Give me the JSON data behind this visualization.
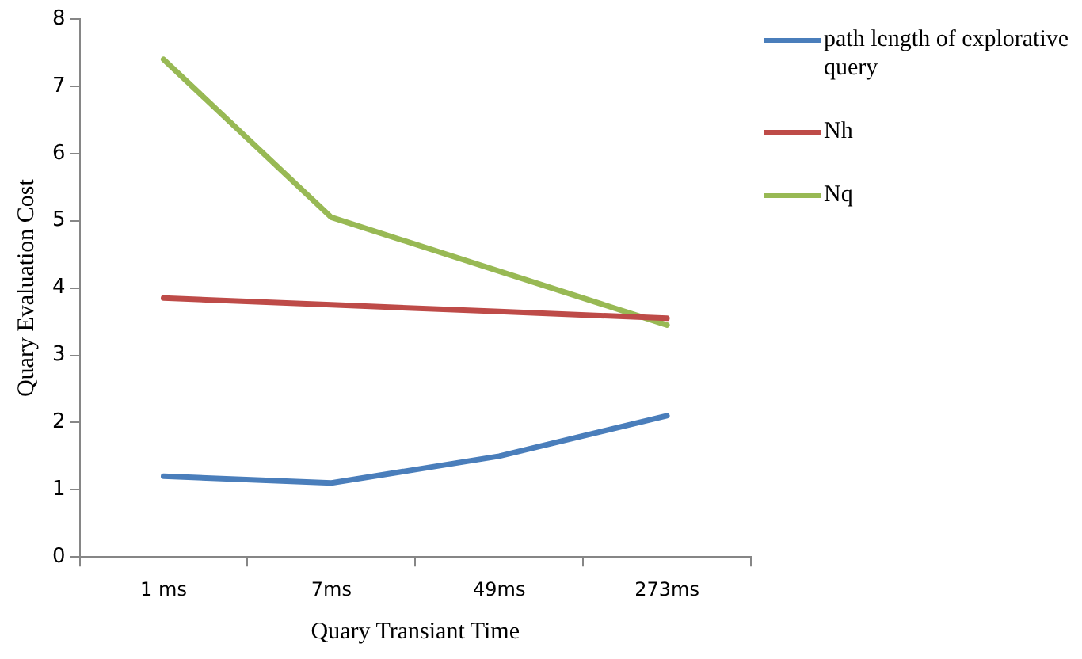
{
  "chart_data": {
    "type": "line",
    "xlabel": "Quary Transiant Time",
    "ylabel": "Quary Evaluation Cost",
    "categories": [
      "1 ms",
      "7ms",
      "49ms",
      "273ms"
    ],
    "series": [
      {
        "name": "path length of explorative query",
        "color": "#4a7ebb",
        "values": [
          1.2,
          1.1,
          1.5,
          2.1
        ]
      },
      {
        "name": "Nh",
        "color": "#be4b48",
        "values": [
          3.85,
          3.75,
          3.65,
          3.55
        ]
      },
      {
        "name": "Nq",
        "color": "#98b954",
        "values": [
          7.4,
          5.05,
          4.25,
          3.45
        ]
      }
    ],
    "ylim": [
      0,
      8
    ],
    "yticks": [
      0,
      1,
      2,
      3,
      4,
      5,
      6,
      7,
      8
    ],
    "grid": false,
    "legend": "right",
    "marker": "none",
    "line_style": "solid"
  }
}
